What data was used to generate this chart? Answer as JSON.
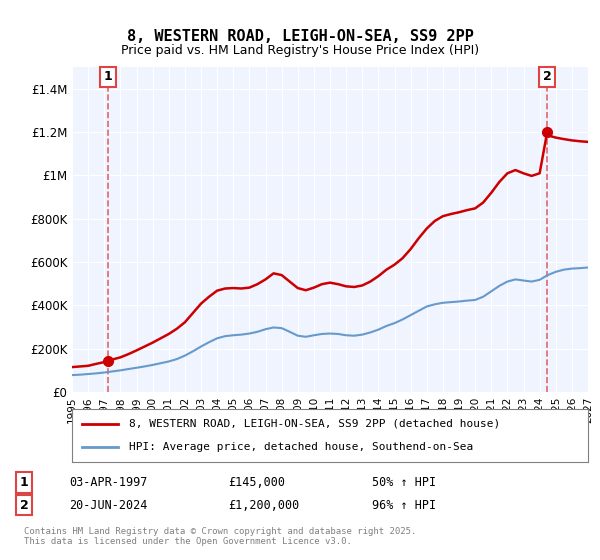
{
  "title": "8, WESTERN ROAD, LEIGH-ON-SEA, SS9 2PP",
  "subtitle": "Price paid vs. HM Land Registry's House Price Index (HPI)",
  "xlabel": "",
  "ylabel": "",
  "ylim": [
    0,
    1500000
  ],
  "yticks": [
    0,
    200000,
    400000,
    600000,
    800000,
    1000000,
    1200000,
    1400000
  ],
  "ytick_labels": [
    "£0",
    "£200K",
    "£400K",
    "£600K",
    "£800K",
    "£1M",
    "£1.2M",
    "£1.4M"
  ],
  "background_color": "#f0f4ff",
  "plot_bg_color": "#f0f4ff",
  "legend_label_red": "8, WESTERN ROAD, LEIGH-ON-SEA, SS9 2PP (detached house)",
  "legend_label_blue": "HPI: Average price, detached house, Southend-on-Sea",
  "annotation1_label": "1",
  "annotation1_date": "03-APR-1997",
  "annotation1_price": "£145,000",
  "annotation1_hpi": "50% ↑ HPI",
  "annotation2_label": "2",
  "annotation2_date": "20-JUN-2024",
  "annotation2_price": "£1,200,000",
  "annotation2_hpi": "96% ↑ HPI",
  "footer": "Contains HM Land Registry data © Crown copyright and database right 2025.\nThis data is licensed under the Open Government Licence v3.0.",
  "red_color": "#cc0000",
  "blue_color": "#6699cc",
  "dashed_red": "#dd4444",
  "point1_x": 1997.25,
  "point1_y": 145000,
  "point2_x": 2024.47,
  "point2_y": 1200000,
  "hpi_data_x": [
    1995,
    1995.5,
    1996,
    1996.5,
    1997,
    1997.5,
    1998,
    1998.5,
    1999,
    1999.5,
    2000,
    2000.5,
    2001,
    2001.5,
    2002,
    2002.5,
    2003,
    2003.5,
    2004,
    2004.5,
    2005,
    2005.5,
    2006,
    2006.5,
    2007,
    2007.5,
    2008,
    2008.5,
    2009,
    2009.5,
    2010,
    2010.5,
    2011,
    2011.5,
    2012,
    2012.5,
    2013,
    2013.5,
    2014,
    2014.5,
    2015,
    2015.5,
    2016,
    2016.5,
    2017,
    2017.5,
    2018,
    2018.5,
    2019,
    2019.5,
    2020,
    2020.5,
    2021,
    2021.5,
    2022,
    2022.5,
    2023,
    2023.5,
    2024,
    2024.5,
    2025,
    2025.5,
    2026,
    2026.5,
    2027
  ],
  "hpi_data_y": [
    78000,
    80000,
    83000,
    86000,
    90000,
    95000,
    100000,
    106000,
    112000,
    118000,
    125000,
    133000,
    141000,
    152000,
    168000,
    188000,
    210000,
    230000,
    248000,
    258000,
    262000,
    265000,
    270000,
    278000,
    290000,
    298000,
    295000,
    278000,
    260000,
    255000,
    262000,
    268000,
    270000,
    268000,
    262000,
    260000,
    265000,
    275000,
    288000,
    305000,
    318000,
    335000,
    355000,
    375000,
    395000,
    405000,
    412000,
    415000,
    418000,
    422000,
    425000,
    440000,
    465000,
    490000,
    510000,
    520000,
    515000,
    510000,
    518000,
    540000,
    555000,
    565000,
    570000,
    572000,
    575000
  ],
  "price_data_x": [
    1995,
    1995.5,
    1996,
    1996.5,
    1997,
    1997.25,
    1997.5,
    1998,
    1998.5,
    1999,
    1999.5,
    2000,
    2000.5,
    2001,
    2001.5,
    2002,
    2002.5,
    2003,
    2003.5,
    2004,
    2004.5,
    2005,
    2005.5,
    2006,
    2006.5,
    2007,
    2007.5,
    2008,
    2008.5,
    2009,
    2009.5,
    2010,
    2010.5,
    2011,
    2011.5,
    2012,
    2012.5,
    2013,
    2013.5,
    2014,
    2014.5,
    2015,
    2015.5,
    2016,
    2016.5,
    2017,
    2017.5,
    2018,
    2018.5,
    2019,
    2019.5,
    2020,
    2020.5,
    2021,
    2021.5,
    2022,
    2022.5,
    2023,
    2023.5,
    2024,
    2024.47,
    2024.5,
    2025,
    2025.5,
    2026,
    2026.5,
    2027
  ],
  "price_data_y": [
    115000,
    118000,
    121000,
    130000,
    138000,
    145000,
    150000,
    160000,
    175000,
    192000,
    210000,
    228000,
    248000,
    268000,
    292000,
    322000,
    365000,
    408000,
    440000,
    468000,
    478000,
    480000,
    478000,
    482000,
    498000,
    520000,
    548000,
    540000,
    510000,
    480000,
    470000,
    482000,
    498000,
    505000,
    498000,
    488000,
    485000,
    492000,
    510000,
    535000,
    565000,
    588000,
    618000,
    660000,
    710000,
    755000,
    790000,
    812000,
    822000,
    830000,
    840000,
    848000,
    875000,
    920000,
    970000,
    1010000,
    1025000,
    1010000,
    998000,
    1010000,
    1200000,
    1185000,
    1175000,
    1168000,
    1162000,
    1158000,
    1155000
  ],
  "xtick_years": [
    1995,
    1996,
    1997,
    1998,
    1999,
    2000,
    2001,
    2002,
    2003,
    2004,
    2005,
    2006,
    2007,
    2008,
    2009,
    2010,
    2011,
    2012,
    2013,
    2014,
    2015,
    2016,
    2017,
    2018,
    2019,
    2020,
    2021,
    2022,
    2023,
    2024,
    2025,
    2026,
    2027
  ]
}
